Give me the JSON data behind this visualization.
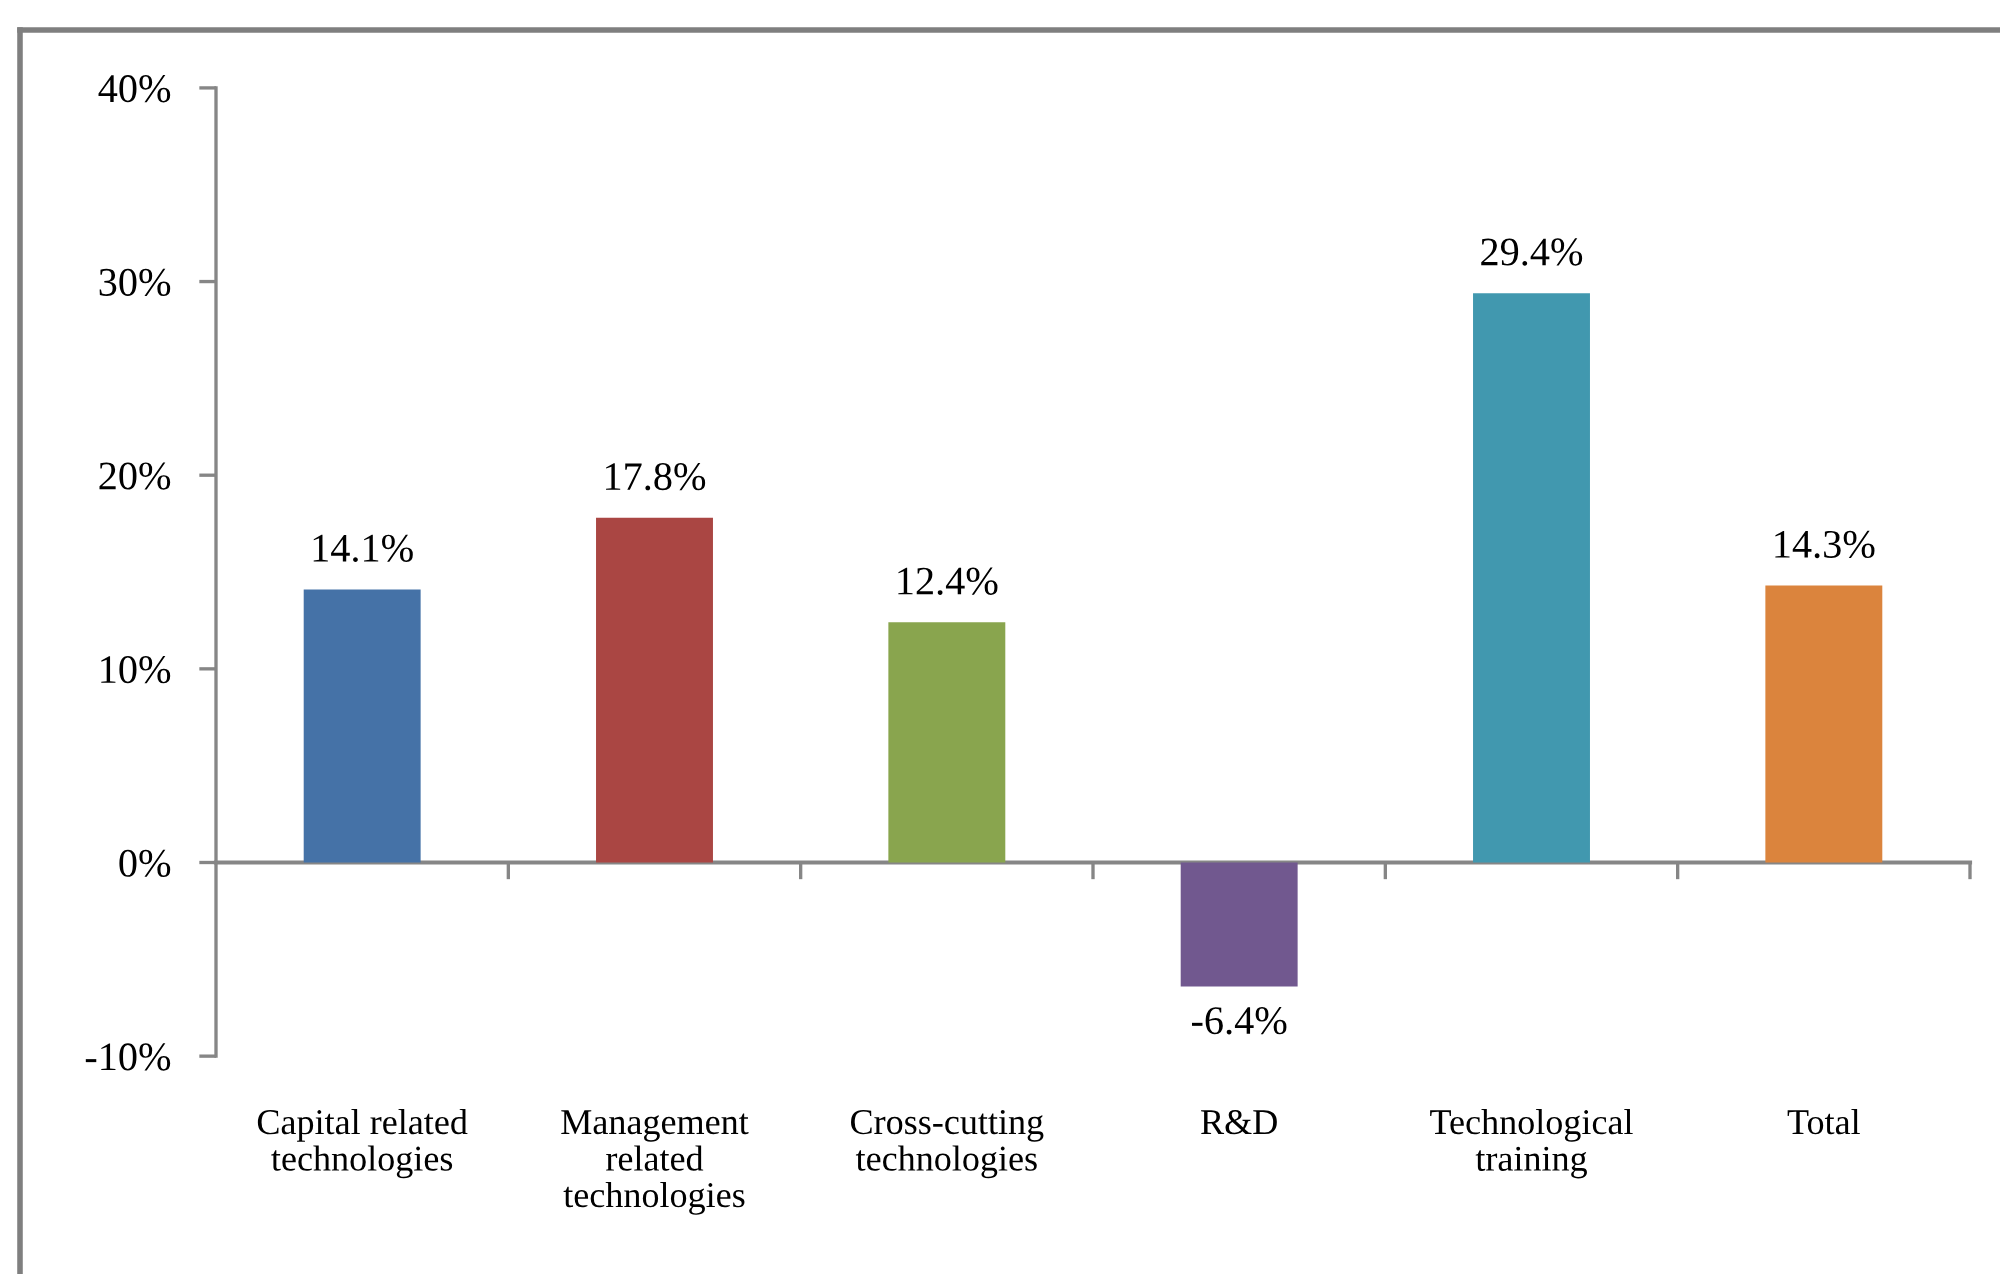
{
  "chart_data": {
    "type": "bar",
    "categories": [
      "Capital related\ntechnologies",
      "Management\nrelated\ntechnologies",
      "Cross-cutting\ntechnologies",
      "R&D",
      "Technological\ntraining",
      "Total"
    ],
    "values": [
      14.1,
      17.8,
      12.4,
      -6.4,
      29.4,
      14.3
    ],
    "colors": [
      "#4572a7",
      "#aa4643",
      "#89a54e",
      "#71588f",
      "#4198af",
      "#db843d"
    ],
    "value_labels": [
      "14.1%",
      "17.8%",
      "12.4%",
      "-6.4%",
      "29.4%",
      "14.3%"
    ],
    "ylim": [
      -10,
      40
    ],
    "yticks": [
      {
        "value": -10,
        "label": "-10%"
      },
      {
        "value": 0,
        "label": "0%"
      },
      {
        "value": 10,
        "label": "10%"
      },
      {
        "value": 20,
        "label": "20%"
      },
      {
        "value": 30,
        "label": "30%"
      },
      {
        "value": 40,
        "label": "40%"
      }
    ]
  }
}
